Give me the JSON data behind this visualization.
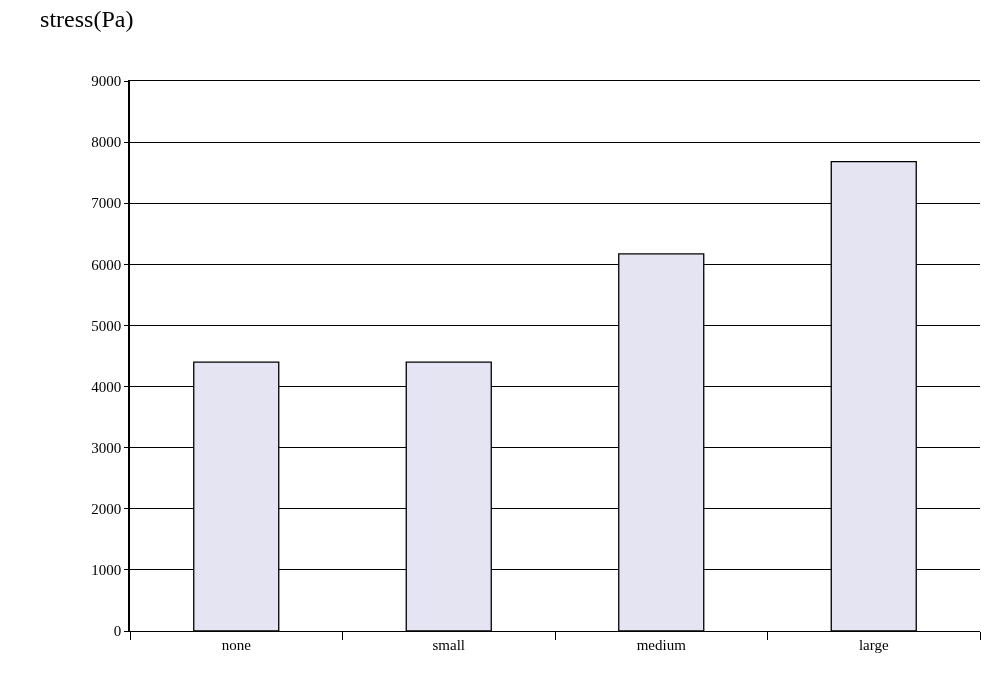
{
  "chart_data": {
    "type": "bar",
    "title": "stress(Pa)",
    "categories": [
      "none",
      "small",
      "medium",
      "large"
    ],
    "values": [
      4400,
      4400,
      6170,
      7680
    ],
    "color": "#e4e4f2",
    "ylim": [
      0,
      9000
    ],
    "yticks": [
      0,
      1000,
      2000,
      3000,
      4000,
      5000,
      6000,
      7000,
      8000,
      9000
    ],
    "grid": "y"
  }
}
